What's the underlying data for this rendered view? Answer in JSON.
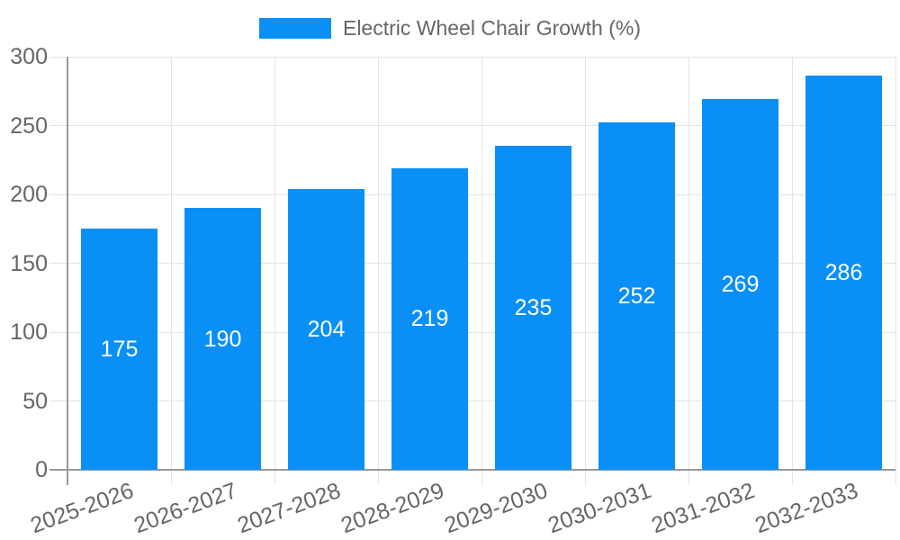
{
  "chart_data": {
    "type": "bar",
    "title": "Electric Wheel Chair Growth (%)",
    "categories": [
      "2025-2026",
      "2026-2027",
      "2027-2028",
      "2028-2029",
      "2029-2030",
      "2030-2031",
      "2031-2032",
      "2032-2033"
    ],
    "values": [
      175,
      190,
      204,
      219,
      235,
      252,
      269,
      286
    ],
    "xlabel": "",
    "ylabel": "",
    "ylim": [
      0,
      300
    ],
    "yticks": [
      0,
      50,
      100,
      150,
      200,
      250,
      300
    ],
    "grid": true,
    "legend_position": "top",
    "bar_color": "#0a8ff7",
    "bar_label_color": "#ffffff",
    "axis_color": "#999999",
    "grid_color": "#e3e3e3",
    "text_color": "#666666",
    "background_color": "#ffffff"
  }
}
